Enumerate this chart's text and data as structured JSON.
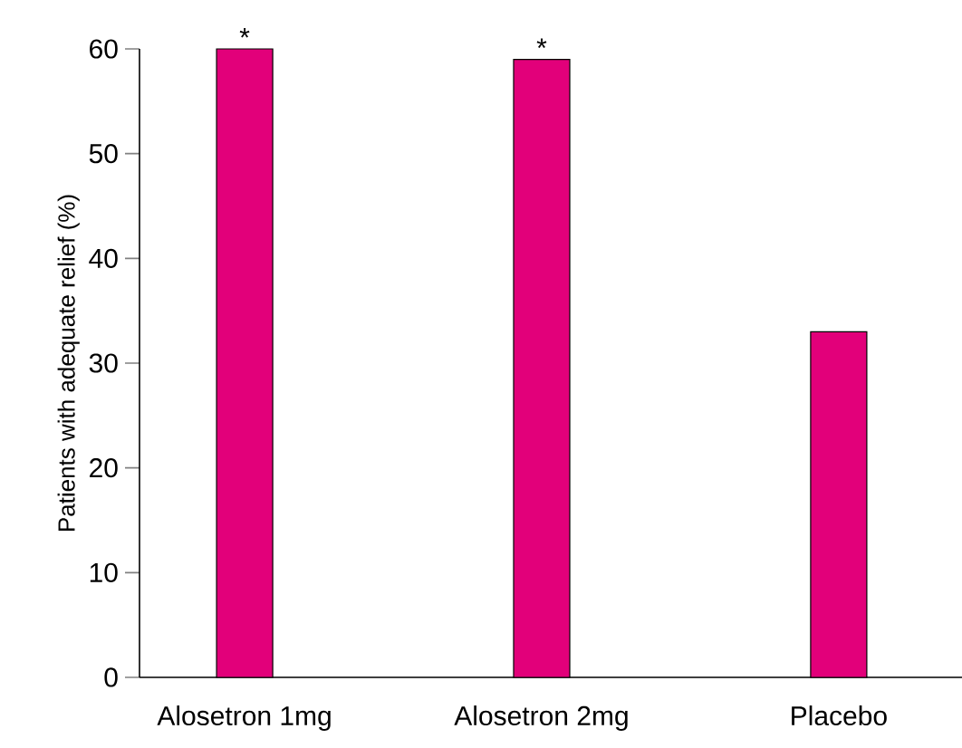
{
  "chart_data": {
    "type": "bar",
    "ylabel": "Patients with adequate relief (%)",
    "categories": [
      "Alosetron 1mg",
      "Alosetron 2mg",
      "Placebo"
    ],
    "values": [
      60,
      59,
      33
    ],
    "color": "#e2007a",
    "ylim": [
      0,
      60
    ],
    "yticks": [
      0,
      10,
      20,
      30,
      40,
      50,
      60
    ],
    "grid": false,
    "annotations": [
      {
        "text": "*",
        "x": "Alosetron 1mg",
        "y": 60
      },
      {
        "text": "*",
        "x": "Alosetron 2mg",
        "y": 59
      }
    ]
  }
}
